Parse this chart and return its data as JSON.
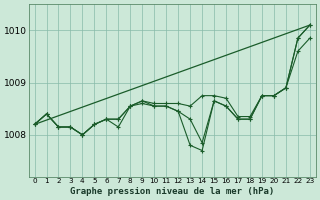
{
  "title": "Graphe pression niveau de la mer (hPa)",
  "background_color": "#cce8d8",
  "grid_color": "#88bbaa",
  "line_color": "#1a5c2a",
  "x_ticks": [
    0,
    1,
    2,
    3,
    4,
    5,
    6,
    7,
    8,
    9,
    10,
    11,
    12,
    13,
    14,
    15,
    16,
    17,
    18,
    19,
    20,
    21,
    22,
    23
  ],
  "ylim": [
    1007.2,
    1010.5
  ],
  "yticks": [
    1008,
    1009,
    1010
  ],
  "straight_line": [
    1008.2,
    1010.1
  ],
  "series": [
    [
      1008.2,
      1008.4,
      1008.15,
      1008.15,
      1008.0,
      1008.2,
      1008.3,
      1008.15,
      1008.55,
      1008.6,
      1008.55,
      1008.55,
      1008.45,
      1008.3,
      1007.85,
      1008.65,
      1008.55,
      1008.3,
      1008.3,
      1008.75,
      1008.75,
      1008.9,
      1009.6,
      1009.85
    ],
    [
      1008.2,
      1008.4,
      1008.15,
      1008.15,
      1008.0,
      1008.2,
      1008.3,
      1008.3,
      1008.55,
      1008.65,
      1008.6,
      1008.6,
      1008.6,
      1008.55,
      1008.75,
      1008.75,
      1008.7,
      1008.35,
      1008.35,
      1008.75,
      1008.75,
      1008.9,
      1009.85,
      1010.1
    ],
    [
      1008.2,
      1008.4,
      1008.15,
      1008.15,
      1008.0,
      1008.2,
      1008.3,
      1008.3,
      1008.55,
      1008.65,
      1008.55,
      1008.55,
      1008.45,
      1007.8,
      1007.7,
      1008.65,
      1008.55,
      1008.3,
      1008.3,
      1008.75,
      1008.75,
      1008.9,
      1009.85,
      1010.1
    ]
  ],
  "ylabel_fontsize": 6.5,
  "xlabel_fontsize": 6.5,
  "tick_fontsize": 5.2
}
